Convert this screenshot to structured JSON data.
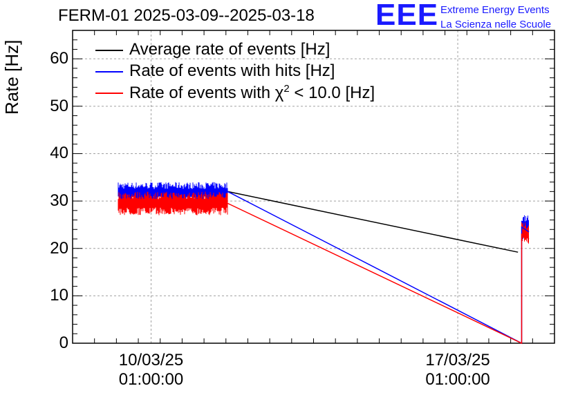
{
  "header": {
    "title": "FERM-01 2025-03-09--2025-03-18",
    "logo": "EEE",
    "logo_line1": "Extreme Energy Events",
    "logo_line2": "La Scienza nelle Scuole"
  },
  "chart_data": {
    "type": "line",
    "title": "FERM-01 2025-03-09--2025-03-18",
    "xlabel": "",
    "ylabel": "Rate [Hz]",
    "ylim": [
      0,
      66
    ],
    "yticks": [
      0,
      10,
      20,
      30,
      40,
      50,
      60
    ],
    "xticks": [
      {
        "x": "10/03/25 01:00:00",
        "line1": "10/03/25",
        "line2": "01:00:00"
      },
      {
        "x": "17/03/25 01:00:00",
        "line1": "17/03/25",
        "line2": "01:00:00"
      }
    ],
    "grid": true,
    "legend_position": "top-left",
    "series": [
      {
        "name": "Average rate of events [Hz]",
        "color": "#000000",
        "points": [
          {
            "x": "2025-03-11T19:00",
            "y": 32.0
          },
          {
            "x": "2025-03-18T10:00",
            "y": 19.2
          }
        ]
      },
      {
        "name": "Rate of events with hits [Hz]",
        "color": "#0000ff",
        "band": {
          "x_start": "2025-03-09T07:00",
          "x_end": "2025-03-11T19:00",
          "y_low": 29.5,
          "y_high": 34.0
        },
        "points": [
          {
            "x": "2025-03-11T19:00",
            "y": 32.0
          },
          {
            "x": "2025-03-18T12:00",
            "y": 0.0
          },
          {
            "x": "2025-03-18T12:00",
            "y": 24.5
          },
          {
            "x": "2025-03-18T16:00",
            "y": 23.5
          }
        ],
        "end_band": {
          "x_start": "2025-03-18T12:00",
          "x_end": "2025-03-18T16:00",
          "y_low": 22.0,
          "y_high": 27.5
        }
      },
      {
        "name": "Rate of events with χ² < 10.0 [Hz]",
        "name_prefix": "Rate of events with χ",
        "name_sup": "2",
        "name_suffix": " < 10.0 [Hz]",
        "color": "#ff0000",
        "band": {
          "x_start": "2025-03-09T07:00",
          "x_end": "2025-03-11T19:00",
          "y_low": 27.0,
          "y_high": 32.0
        },
        "points": [
          {
            "x": "2025-03-11T19:00",
            "y": 29.5
          },
          {
            "x": "2025-03-18T12:00",
            "y": 0.0
          },
          {
            "x": "2025-03-18T12:00",
            "y": 23.0
          },
          {
            "x": "2025-03-18T16:00",
            "y": 22.0
          }
        ],
        "end_band": {
          "x_start": "2025-03-18T12:00",
          "x_end": "2025-03-18T16:00",
          "y_low": 21.0,
          "y_high": 25.5
        }
      }
    ]
  }
}
